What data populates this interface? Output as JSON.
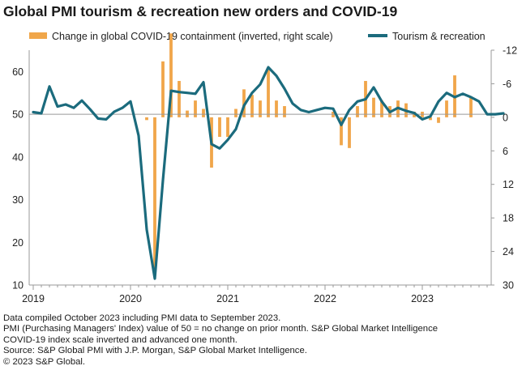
{
  "title": "Global PMI tourism & recreation new orders and COVID-19",
  "chart_data": {
    "type": "bar+line",
    "title": "Global PMI tourism & recreation new orders and COVID-19",
    "legend": [
      {
        "label": "Change in global COVID-19 containment (inverted, right scale)",
        "color": "#f0a64a",
        "kind": "bar"
      },
      {
        "label": "Tourism & recreation",
        "color": "#1b6b7d",
        "kind": "line"
      }
    ],
    "x_tick_labels": [
      "2019",
      "2020",
      "2021",
      "2022",
      "2023"
    ],
    "x_tick_months": [
      0,
      12,
      24,
      36,
      48
    ],
    "x_range_months": [
      -0.5,
      56.5
    ],
    "left_axis": {
      "ticks": [
        60,
        50,
        40,
        30,
        20,
        10
      ],
      "range": [
        10,
        65
      ]
    },
    "right_axis": {
      "ticks": [
        -12,
        -6,
        0,
        6,
        12,
        18,
        24,
        30
      ],
      "labels": [
        "-12",
        "-6",
        "0",
        "6",
        "12",
        "18",
        "24",
        "30"
      ],
      "range": [
        -12,
        30
      ]
    },
    "series": [
      {
        "name": "Tourism & recreation",
        "start_month": 0,
        "values": [
          50.5,
          50.2,
          56.5,
          51.8,
          52.3,
          51.5,
          53.2,
          51.2,
          49.0,
          48.8,
          50.6,
          51.5,
          53.0,
          45.0,
          23.0,
          11.5,
          34.5,
          55.5,
          55.2,
          55.0,
          54.8,
          57.5,
          43.0,
          42.0,
          44.0,
          46.5,
          52.0,
          55.0,
          57.0,
          61.0,
          59.0,
          56.0,
          52.5,
          51.0,
          50.5,
          51.0,
          51.5,
          51.3,
          47.5,
          51.0,
          53.0,
          53.5,
          56.3,
          53.0,
          50.5,
          51.5,
          50.8,
          50.3,
          48.8,
          49.5,
          53.0,
          55.0,
          54.0,
          54.8,
          54.0,
          53.0,
          50.0,
          50.0,
          50.2
        ]
      },
      {
        "name": "Change in global COVID-19 containment (inverted, right scale)",
        "start_month": 0,
        "values": [
          0,
          0,
          0,
          0,
          0,
          0,
          0,
          0,
          0,
          0,
          0,
          0,
          0,
          0,
          0.5,
          27.5,
          -10.0,
          -15.0,
          -6.5,
          -1.2,
          -3.0,
          -1.5,
          9.0,
          3.5,
          3.5,
          -1.5,
          -5.0,
          -4.0,
          -3.0,
          -8.5,
          -3.0,
          -2.0,
          0,
          0,
          0,
          0,
          0,
          -1.0,
          5.0,
          5.5,
          -2.0,
          -6.5,
          -3.5,
          -3.0,
          -2.0,
          -3.0,
          -2.5,
          -1.0,
          -1.0,
          0.5,
          1.0,
          -3.0,
          -7.5,
          0,
          -3.5,
          0,
          0,
          0,
          0
        ]
      }
    ]
  },
  "notes": [
    "Data compiled October 2023 including PMI data to September 2023.",
    "PMI (Purchasing Managers' Index) value of 50 = no change on prior month. S&P Global Market Intelligence",
    "COVID-19 index scale inverted and advanced one month.",
    "Source: S&P Global PMI with J.P. Morgan, S&P Global Market Intelligence.",
    "© 2023 S&P Global."
  ],
  "colors": {
    "bar": "#f0a64a",
    "line": "#1b6b7d",
    "axis": "#9a9a9a",
    "zero_line": "#999999"
  }
}
